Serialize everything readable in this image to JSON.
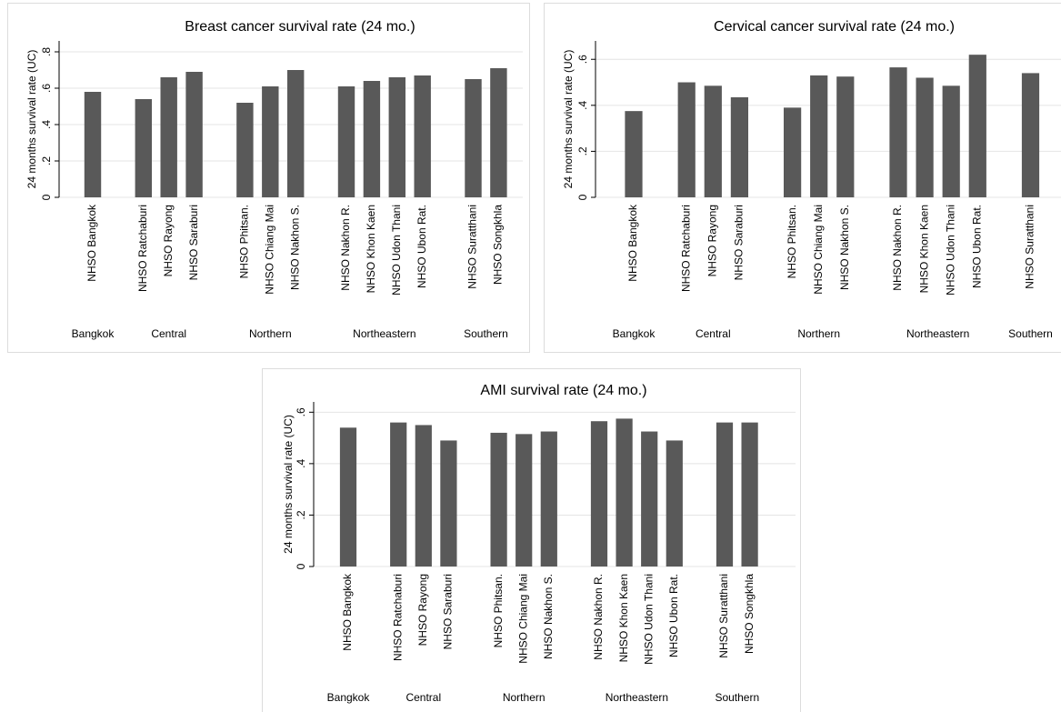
{
  "chart_data": [
    {
      "type": "bar",
      "title": "Breast cancer survival rate (24 mo.)",
      "y_label": "24 months survival rate (UC)",
      "color": "#595959",
      "ylim": [
        0,
        0.86
      ],
      "yticks": [
        0,
        {
          "value": 0.2,
          "label": ".2"
        },
        {
          "value": 0.4,
          "label": ".4"
        },
        {
          "value": 0.6,
          "label": ".6"
        },
        {
          "value": 0.8,
          "label": ".8"
        }
      ],
      "grid": true,
      "groups": [
        {
          "name": "Bangkok",
          "categories": [
            "NHSO Bangkok"
          ],
          "values": [
            0.58
          ]
        },
        {
          "name": "Central",
          "categories": [
            "NHSO Ratchaburi",
            "NHSO Rayong",
            "NHSO Saraburi"
          ],
          "values": [
            0.54,
            0.66,
            0.69
          ]
        },
        {
          "name": "Northern",
          "categories": [
            "NHSO Phitsan.",
            "NHSO Chiang Mai",
            "NHSO Nakhon S."
          ],
          "values": [
            0.52,
            0.61,
            0.7
          ]
        },
        {
          "name": "Northeastern",
          "categories": [
            "NHSO Nakhon R.",
            "NHSO Khon Kaen",
            "NHSO Udon Thani",
            "NHSO Ubon Rat."
          ],
          "values": [
            0.61,
            0.64,
            0.66,
            0.67
          ]
        },
        {
          "name": "Southern",
          "categories": [
            "NHSO Suratthani",
            "NHSO Songkhla"
          ],
          "values": [
            0.65,
            0.71
          ]
        }
      ]
    },
    {
      "type": "bar",
      "title": "Cervical cancer survival rate (24 mo.)",
      "y_label": "24 months survival rate (UC)",
      "color": "#595959",
      "ylim": [
        0,
        0.68
      ],
      "yticks": [
        0,
        {
          "value": 0.2,
          "label": ".2"
        },
        {
          "value": 0.4,
          "label": ".4"
        },
        {
          "value": 0.6,
          "label": ".6"
        }
      ],
      "grid": true,
      "groups": [
        {
          "name": "Bangkok",
          "categories": [
            "NHSO Bangkok"
          ],
          "values": [
            0.375
          ]
        },
        {
          "name": "Central",
          "categories": [
            "NHSO Ratchaburi",
            "NHSO Rayong",
            "NHSO Saraburi"
          ],
          "values": [
            0.5,
            0.485,
            0.435
          ]
        },
        {
          "name": "Northern",
          "categories": [
            "NHSO Phitsan.",
            "NHSO Chiang Mai",
            "NHSO Nakhon S."
          ],
          "values": [
            0.39,
            0.53,
            0.525
          ]
        },
        {
          "name": "Northeastern",
          "categories": [
            "NHSO Nakhon R.",
            "NHSO Khon Kaen",
            "NHSO Udon Thani",
            "NHSO Ubon Rat."
          ],
          "values": [
            0.565,
            0.52,
            0.485,
            0.62
          ]
        },
        {
          "name": "Southern",
          "categories": [
            "NHSO Suratthani"
          ],
          "values": [
            0.54
          ]
        }
      ]
    },
    {
      "type": "bar",
      "title": "AMI survival rate (24 mo.)",
      "y_label": "24 months survival rate (UC)",
      "color": "#595959",
      "ylim": [
        0,
        0.64
      ],
      "yticks": [
        0,
        {
          "value": 0.2,
          "label": ".2"
        },
        {
          "value": 0.4,
          "label": ".4"
        },
        {
          "value": 0.6,
          "label": ".6"
        }
      ],
      "grid": true,
      "groups": [
        {
          "name": "Bangkok",
          "categories": [
            "NHSO Bangkok"
          ],
          "values": [
            0.54
          ]
        },
        {
          "name": "Central",
          "categories": [
            "NHSO Ratchaburi",
            "NHSO Rayong",
            "NHSO Saraburi"
          ],
          "values": [
            0.56,
            0.55,
            0.49
          ]
        },
        {
          "name": "Northern",
          "categories": [
            "NHSO Phitsan.",
            "NHSO Chiang Mai",
            "NHSO Nakhon S."
          ],
          "values": [
            0.52,
            0.515,
            0.525
          ]
        },
        {
          "name": "Northeastern",
          "categories": [
            "NHSO Nakhon R.",
            "NHSO Khon Kaen",
            "NHSO Udon Thani",
            "NHSO Ubon Rat."
          ],
          "values": [
            0.565,
            0.575,
            0.525,
            0.49
          ]
        },
        {
          "name": "Southern",
          "categories": [
            "NHSO Suratthani",
            "NHSO Songkhla"
          ],
          "values": [
            0.56,
            0.56
          ]
        }
      ]
    }
  ]
}
